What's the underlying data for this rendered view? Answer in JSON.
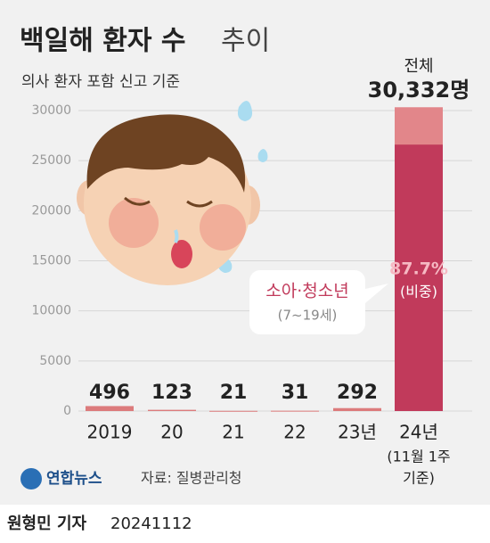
{
  "chart_data": {
    "type": "bar",
    "title": "백일해 환자 수",
    "title_light": "추이",
    "subtitle": "의사 환자 포함 신고 기준",
    "categories": [
      "2019",
      "20",
      "21",
      "22",
      "23년",
      "24년"
    ],
    "category_note": [
      "(11월 1주",
      "기준)"
    ],
    "values": [
      496,
      123,
      21,
      31,
      292,
      30332
    ],
    "value_labels": [
      "496",
      "123",
      "21",
      "31",
      "292",
      "30,332명"
    ],
    "total_label": "전체",
    "color": "#dc7b7c",
    "last_color": "#e2868a",
    "highlight": {
      "label": "소아·청소년",
      "sublabel": "(7~19세)",
      "share": 87.7,
      "share_label": "87.7%",
      "share_note": "(비중)",
      "color": "#c13a5b"
    },
    "ylim": [
      0,
      30000
    ],
    "yticks": [
      0,
      5000,
      10000,
      15000,
      20000,
      25000,
      30000
    ],
    "grid": true,
    "logo": "연합뉴스",
    "source": "자료: 질병관리청",
    "byline": "원형민 기자",
    "date": "20241112"
  }
}
